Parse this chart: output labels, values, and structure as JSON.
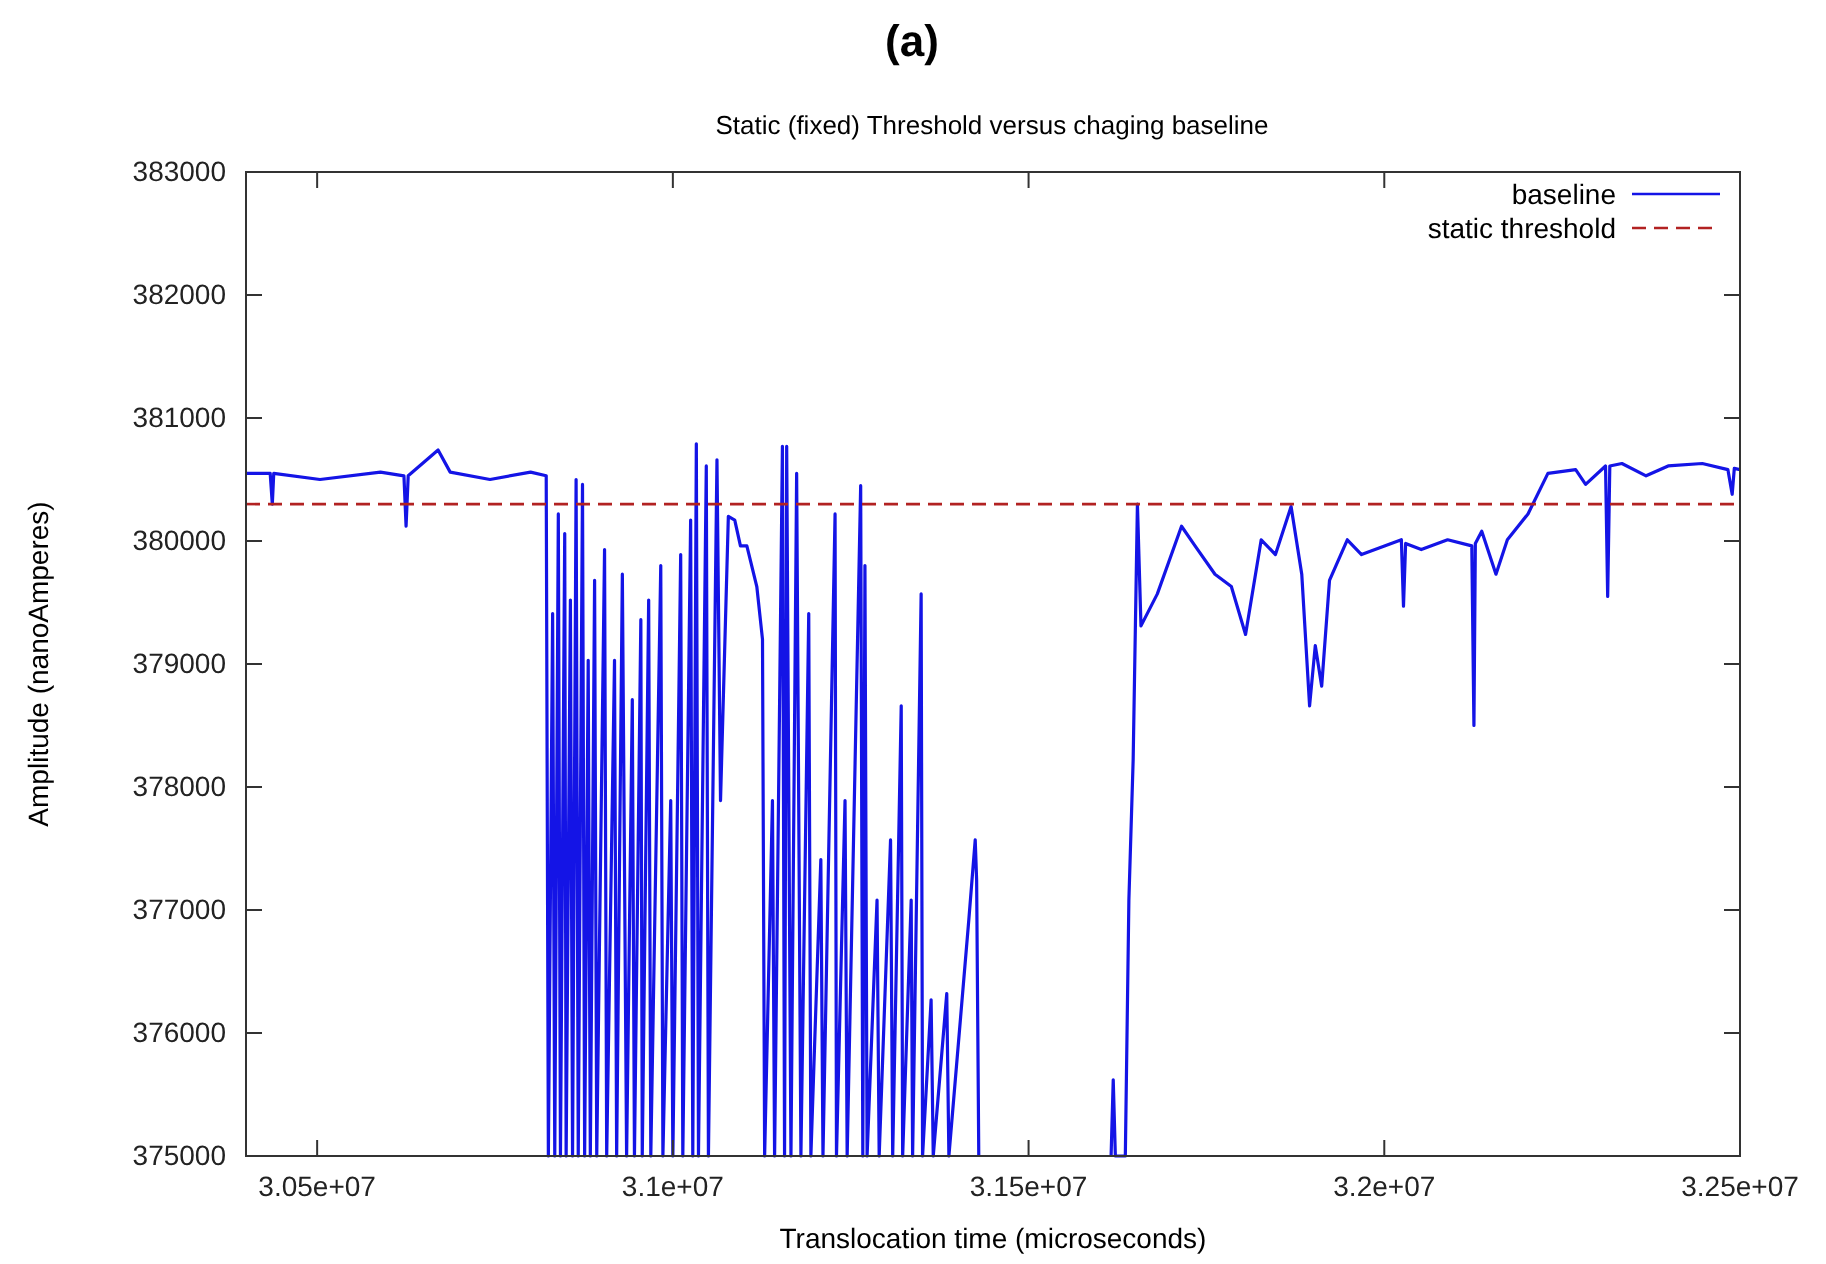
{
  "chart_data": {
    "type": "line",
    "title": "(a)",
    "subtitle": "Static (fixed) Threshold versus chaging baseline",
    "xlabel": "Translocation time (microseconds)",
    "ylabel": "Amplitude (nanoAmperes)",
    "xlim": [
      30400000,
      32500000
    ],
    "xticks": [
      {
        "value": 30500000,
        "label": "3.05e+07"
      },
      {
        "value": 31000000,
        "label": "3.1e+07"
      },
      {
        "value": 31500000,
        "label": "3.15e+07"
      },
      {
        "value": 32000000,
        "label": "3.2e+07"
      },
      {
        "value": 32500000,
        "label": "3.25e+07"
      }
    ],
    "ylim": [
      375000,
      383000
    ],
    "yticks": [
      375000,
      376000,
      377000,
      378000,
      379000,
      380000,
      381000,
      382000,
      383000
    ],
    "grid": false,
    "legend": "top right",
    "marker": "none",
    "line_style": "solid",
    "series": [
      {
        "name": "baseline",
        "color": "#1414e6",
        "x": [
          30400000,
          30434000,
          30437000,
          30439000,
          30504000,
          30589000,
          30622000,
          30625000,
          30628000,
          30670000,
          30687000,
          30743000,
          30800000,
          30822000,
          30825000,
          30831000,
          30834000,
          30839000,
          30842000,
          30848000,
          30850000,
          30856000,
          30859000,
          30864000,
          30867000,
          30873000,
          30876000,
          30881000,
          30884000,
          30890000,
          30893000,
          30904000,
          30907000,
          30918000,
          30921000,
          30929000,
          30935000,
          30943000,
          30946000,
          30955000,
          30957000,
          30966000,
          30969000,
          30983000,
          30986000,
          30997000,
          31000000,
          31011000,
          31014000,
          31025000,
          31028000,
          31033000,
          31036000,
          31047000,
          31050000,
          31062000,
          31067000,
          31078000,
          31087000,
          31095000,
          31104000,
          31118000,
          31126000,
          31129000,
          31140000,
          31143000,
          31154000,
          31157000,
          31160000,
          31166000,
          31174000,
          31180000,
          31191000,
          31194000,
          31208000,
          31211000,
          31228000,
          31230000,
          31242000,
          31245000,
          31264000,
          31267000,
          31270000,
          31273000,
          31287000,
          31290000,
          31306000,
          31309000,
          31321000,
          31323000,
          31335000,
          31337000,
          31349000,
          31351000,
          31363000,
          31366000,
          31385000,
          31388000,
          31416000,
          31425000,
          31427000,
          31430000,
          31500000,
          31616000,
          31619000,
          31622000,
          31636000,
          31641000,
          31647000,
          31653000,
          31658000,
          31681000,
          31715000,
          31734000,
          31762000,
          31785000,
          31805000,
          31827000,
          31847000,
          31869000,
          31884000,
          31895000,
          31903000,
          31912000,
          31923000,
          31948000,
          31968000,
          32024000,
          32027000,
          32030000,
          32052000,
          32089000,
          32123000,
          32126000,
          32128000,
          32137000,
          32157000,
          32173000,
          32202000,
          32230000,
          32269000,
          32283000,
          32311000,
          32314000,
          32317000,
          32334000,
          32368000,
          32399000,
          32447000,
          32483000,
          32489000,
          32492000,
          32500000
        ],
        "values": [
          380550,
          380550,
          380300,
          380550,
          380500,
          380560,
          380530,
          380120,
          380530,
          380740,
          380560,
          380500,
          380560,
          380530,
          375000,
          379410,
          375000,
          380220,
          375000,
          380060,
          375000,
          379520,
          375000,
          380500,
          375000,
          380460,
          375000,
          379030,
          375000,
          379680,
          375000,
          379930,
          375000,
          379030,
          375000,
          379730,
          375000,
          378710,
          375000,
          379360,
          375000,
          379520,
          375000,
          379800,
          375000,
          377890,
          375000,
          379890,
          375000,
          380170,
          375000,
          380790,
          375000,
          380610,
          375000,
          380660,
          377890,
          380200,
          380170,
          379960,
          379960,
          379630,
          379200,
          375000,
          377890,
          375000,
          380770,
          375000,
          380770,
          375000,
          380550,
          375000,
          379410,
          375000,
          377410,
          375000,
          380220,
          375000,
          377890,
          375000,
          380450,
          375000,
          379800,
          375000,
          377080,
          375000,
          377570,
          375000,
          378660,
          375000,
          377080,
          375000,
          379570,
          375000,
          376270,
          375000,
          376320,
          375000,
          376920,
          377570,
          377240,
          375000,
          null,
          375000,
          375620,
          375000,
          375000,
          377080,
          378220,
          380300,
          379310,
          379570,
          380120,
          379960,
          379730,
          379630,
          379240,
          380010,
          379890,
          380280,
          379730,
          378660,
          379150,
          378820,
          379680,
          380010,
          379890,
          380010,
          379470,
          379980,
          379930,
          380010,
          379960,
          378500,
          379980,
          380080,
          379730,
          380010,
          380220,
          380550,
          380580,
          380460,
          380610,
          379550,
          380610,
          380630,
          380530,
          380610,
          380630,
          380580,
          380380,
          380590,
          380580
        ]
      }
    ],
    "ref_lines": [
      {
        "axis": "y",
        "value": 380300,
        "label": "static threshold",
        "color": "#b22222",
        "line_style": "dashed"
      }
    ]
  }
}
